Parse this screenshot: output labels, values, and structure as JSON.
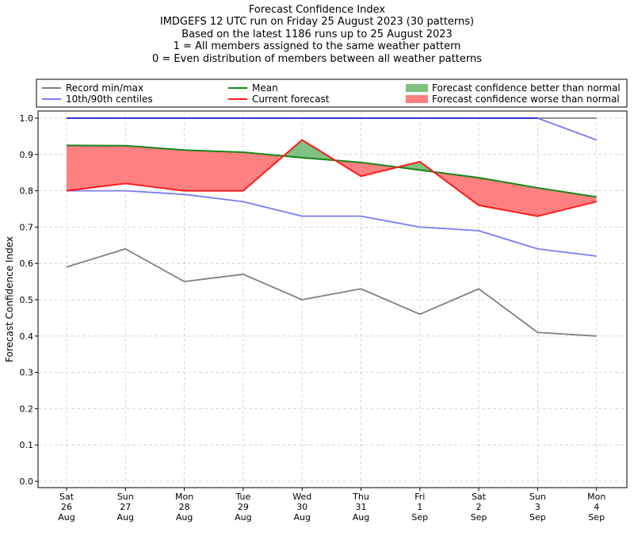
{
  "title_lines": [
    "Forecast Confidence Index",
    "IMDGEFS 12 UTC run on Friday 25 August 2023 (30 patterns)",
    "Based on the latest 1186 runs up to 25 August 2023",
    "1 = All members assigned to the same weather pattern",
    "0 = Even distribution of members between all weather patterns"
  ],
  "colors": {
    "record": "#808080",
    "centiles": "#7b7bf5",
    "mean": "#188418",
    "current": "#ff1a1a",
    "better_fill": "#80c080",
    "worse_fill": "#ff8080",
    "top_line": "#2222dd"
  },
  "chart_data": {
    "type": "line",
    "ylabel": "Forecast Confidence Index",
    "ylim": [
      0.0,
      1.0
    ],
    "yticks": [
      "0.0",
      "0.1",
      "0.2",
      "0.3",
      "0.4",
      "0.5",
      "0.6",
      "0.7",
      "0.8",
      "0.9",
      "1.0"
    ],
    "grid": true,
    "legend_position": "top",
    "categories": [
      [
        "Sat",
        "26",
        "Aug"
      ],
      [
        "Sun",
        "27",
        "Aug"
      ],
      [
        "Mon",
        "28",
        "Aug"
      ],
      [
        "Tue",
        "29",
        "Aug"
      ],
      [
        "Wed",
        "30",
        "Aug"
      ],
      [
        "Thu",
        "31",
        "Aug"
      ],
      [
        "Fri",
        "1",
        "Sep"
      ],
      [
        "Sat",
        "2",
        "Sep"
      ],
      [
        "Sun",
        "3",
        "Sep"
      ],
      [
        "Mon",
        "4",
        "Sep"
      ]
    ],
    "series": [
      {
        "key": "record_max",
        "name": "Record min/max",
        "color_key": "record",
        "values": [
          1.0,
          1.0,
          1.0,
          1.0,
          1.0,
          1.0,
          1.0,
          1.0,
          1.0,
          1.0
        ]
      },
      {
        "key": "record_min",
        "name": "Record min/max",
        "color_key": "record",
        "values": [
          0.59,
          0.64,
          0.55,
          0.57,
          0.5,
          0.53,
          0.46,
          0.53,
          0.41,
          0.4
        ]
      },
      {
        "key": "p90",
        "name": "10th/90th centiles",
        "color_key": "top_line",
        "values": [
          1.0,
          1.0,
          1.0,
          1.0,
          1.0,
          1.0,
          1.0,
          1.0,
          1.0,
          0.94
        ]
      },
      {
        "key": "p10",
        "name": "10th/90th centiles",
        "color_key": "centiles",
        "values": [
          0.8,
          0.8,
          0.79,
          0.77,
          0.73,
          0.73,
          0.7,
          0.69,
          0.64,
          0.62
        ]
      },
      {
        "key": "mean",
        "name": "Mean",
        "color_key": "mean",
        "values": [
          0.925,
          0.924,
          0.912,
          0.906,
          0.891,
          0.878,
          0.857,
          0.836,
          0.808,
          0.783
        ]
      },
      {
        "key": "current",
        "name": "Current forecast",
        "color_key": "current",
        "values": [
          0.8,
          0.82,
          0.8,
          0.8,
          0.94,
          0.84,
          0.88,
          0.76,
          0.73,
          0.77
        ]
      }
    ],
    "legend": [
      {
        "label": "Record min/max",
        "kind": "line",
        "color_key": "record"
      },
      {
        "label": "10th/90th centiles",
        "kind": "line",
        "color_key": "centiles"
      },
      {
        "label": "Mean",
        "kind": "line",
        "color_key": "mean"
      },
      {
        "label": "Current forecast",
        "kind": "line",
        "color_key": "current"
      },
      {
        "label": "Forecast confidence better than normal",
        "kind": "patch",
        "color_key": "better_fill"
      },
      {
        "label": "Forecast confidence worse than normal",
        "kind": "patch",
        "color_key": "worse_fill"
      }
    ]
  }
}
